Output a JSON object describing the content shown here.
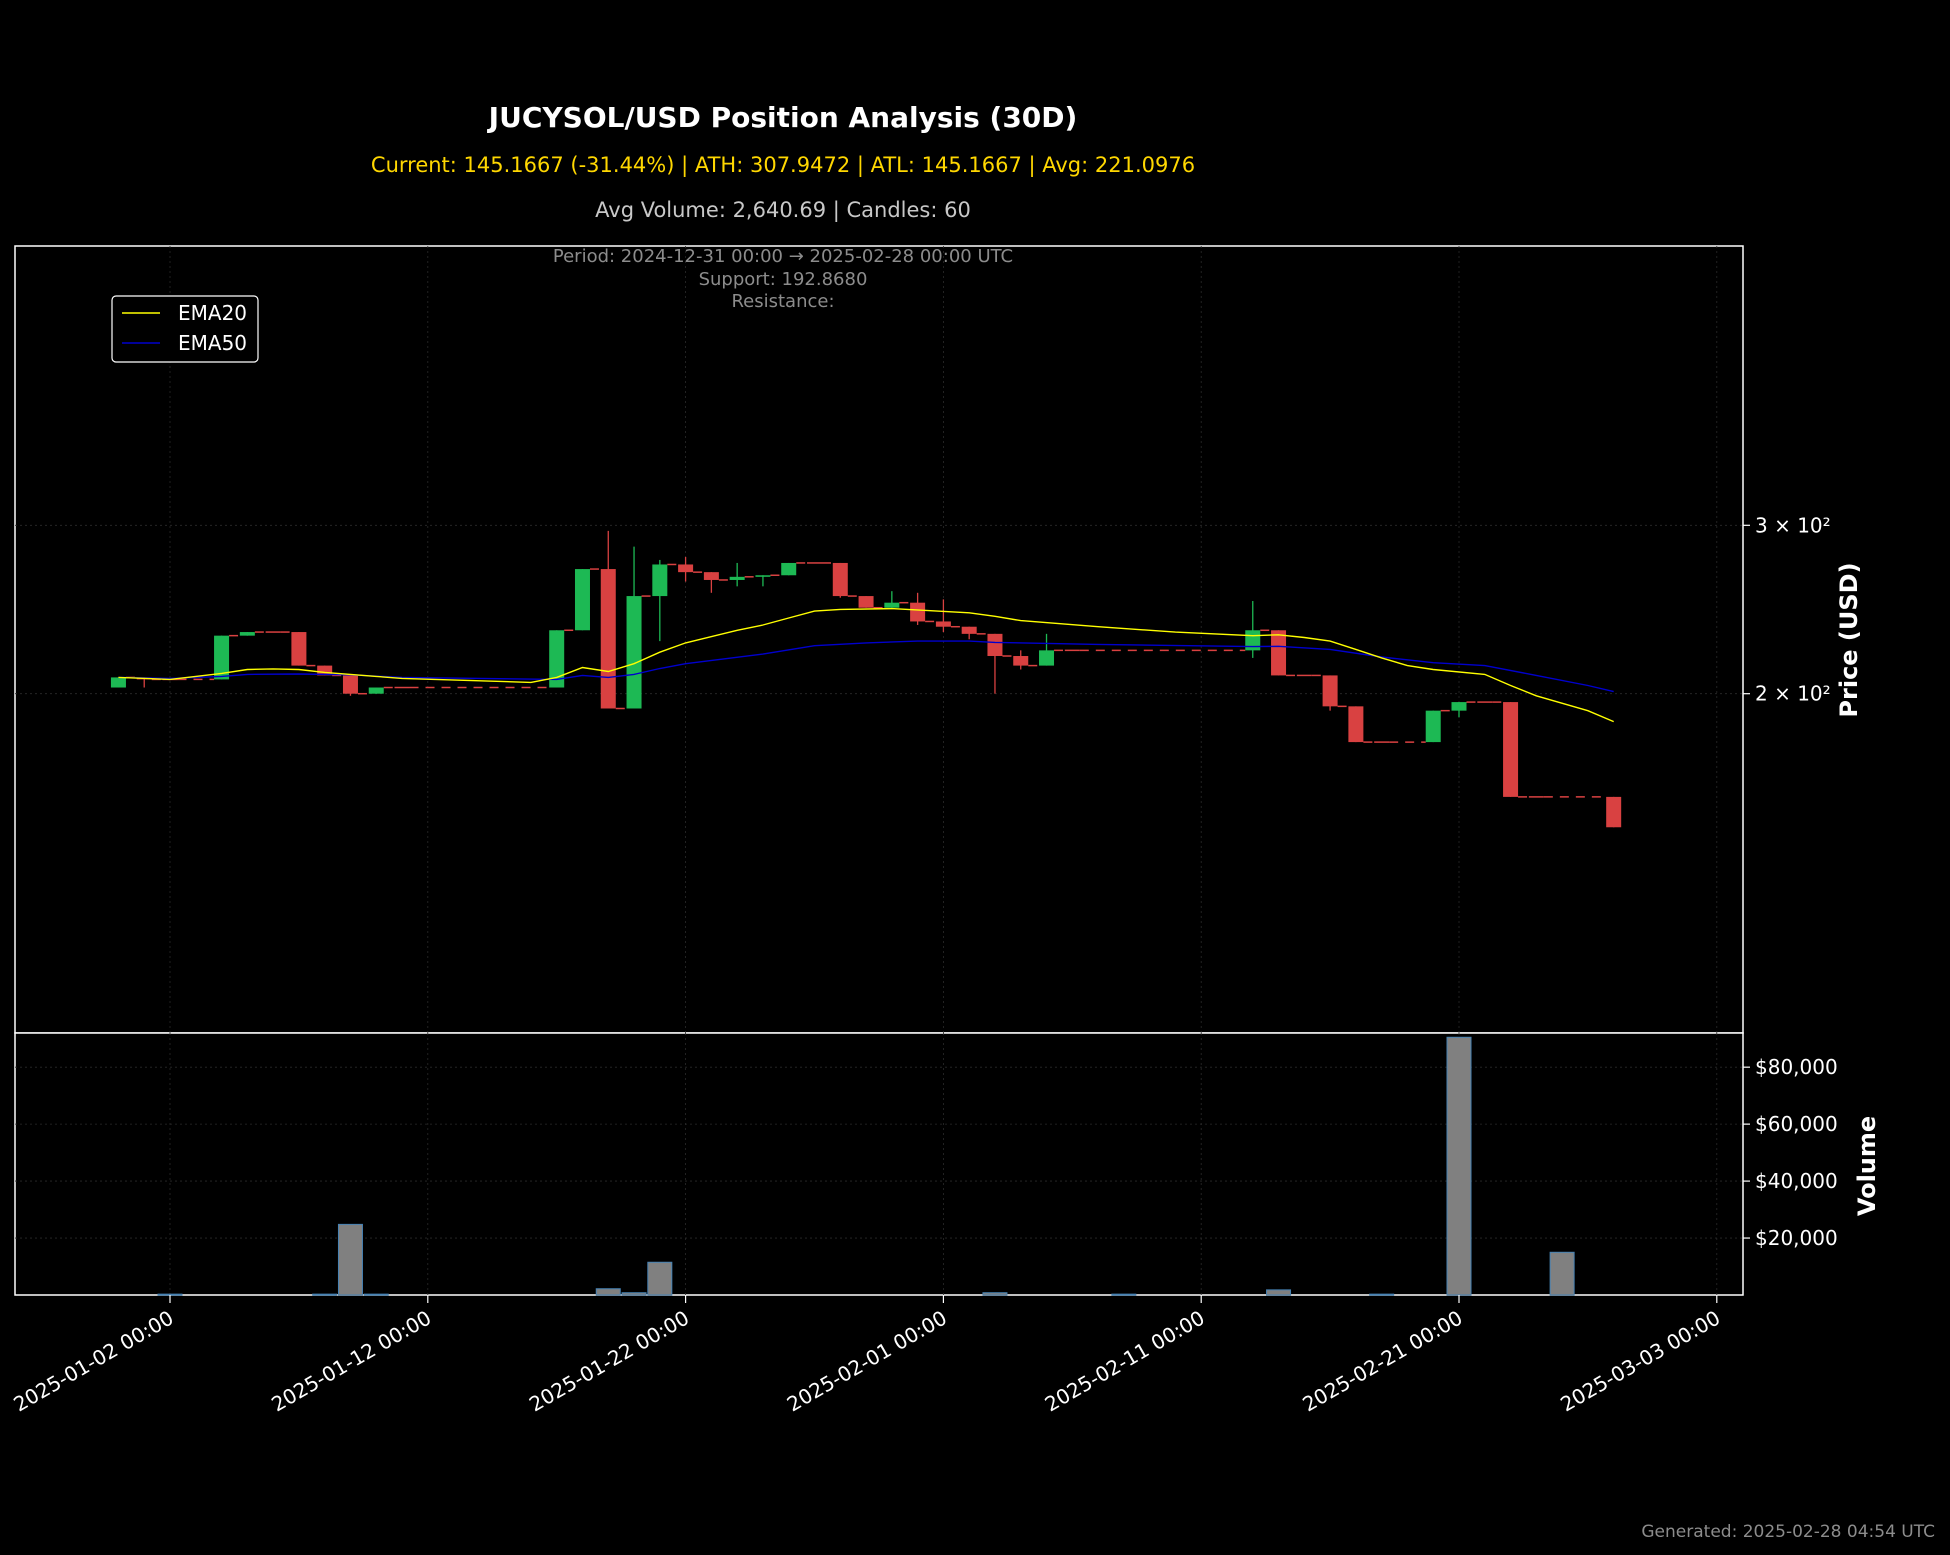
{
  "header": {
    "title": "JUCYSOL/USD Position Analysis (30D)",
    "stats": "Current: 145.1667 (-31.44%) | ATH: 307.9472 | ATL: 145.1667 | Avg: 221.0976",
    "volume_info": "Avg Volume: 2,640.69 | Candles: 60",
    "period": "Period: 2024-12-31 00:00 → 2025-02-28 00:00 UTC",
    "support": "Support: 192.8680",
    "resistance": "Resistance:"
  },
  "footer": {
    "generated": "Generated: 2025-02-28 04:54 UTC"
  },
  "colors": {
    "up": "#1db954",
    "down": "#d94141",
    "ema20": "#ffff00",
    "ema50": "#0000cd",
    "volume": "#808080",
    "volume_edge": "#4682b4",
    "background": "#000000",
    "grid": "#2a2a2a"
  },
  "chart_data": [
    {
      "type": "candlestick",
      "ylabel": "Price (USD)",
      "yscale": "log",
      "ylim": [
        145,
        318
      ],
      "y_tick_labels": [
        "2 × 10²",
        "3 × 10²"
      ],
      "y_ticks": [
        200,
        300
      ],
      "grid": true,
      "legend": {
        "position": "top-left",
        "entries": [
          "EMA20",
          "EMA50"
        ]
      },
      "x_tick_labels": [
        "2025-01-02 00:00",
        "2025-01-12 00:00",
        "2025-01-22 00:00",
        "2025-02-01 00:00",
        "2025-02-11 00:00",
        "2025-02-21 00:00",
        "2025-03-03 00:00"
      ],
      "candles": [
        {
          "d": "2024-12-31",
          "o": 203,
          "h": 208,
          "l": 203,
          "c": 208
        },
        {
          "d": "2025-01-01",
          "o": 208,
          "h": 208,
          "l": 203,
          "c": 207
        },
        {
          "d": "2025-01-02",
          "o": 207,
          "h": 207,
          "l": 207,
          "c": 207
        },
        {
          "d": "2025-01-04",
          "o": 207,
          "h": 230,
          "l": 207,
          "c": 230
        },
        {
          "d": "2025-01-05",
          "o": 230,
          "h": 232,
          "l": 230,
          "c": 232
        },
        {
          "d": "2025-01-06",
          "o": 232,
          "h": 232,
          "l": 232,
          "c": 232
        },
        {
          "d": "2025-01-07",
          "o": 232,
          "h": 232,
          "l": 214,
          "c": 214
        },
        {
          "d": "2025-01-08",
          "o": 214,
          "h": 214,
          "l": 209,
          "c": 209
        },
        {
          "d": "2025-01-09",
          "o": 209,
          "h": 209,
          "l": 199,
          "c": 200
        },
        {
          "d": "2025-01-10",
          "o": 200,
          "h": 203,
          "l": 200,
          "c": 203
        },
        {
          "d": "2025-01-11",
          "o": 203,
          "h": 203,
          "l": 203,
          "c": 203
        },
        {
          "d": "2025-01-17",
          "o": 203,
          "h": 233,
          "l": 203,
          "c": 233
        },
        {
          "d": "2025-01-18",
          "o": 233,
          "h": 270,
          "l": 233,
          "c": 270
        },
        {
          "d": "2025-01-19",
          "o": 270,
          "h": 296,
          "l": 193,
          "c": 193
        },
        {
          "d": "2025-01-20",
          "o": 193,
          "h": 285,
          "l": 193,
          "c": 253
        },
        {
          "d": "2025-01-21",
          "o": 253,
          "h": 276,
          "l": 227,
          "c": 273
        },
        {
          "d": "2025-01-22",
          "o": 273,
          "h": 278,
          "l": 262,
          "c": 268
        },
        {
          "d": "2025-01-23",
          "o": 268,
          "h": 268,
          "l": 255,
          "c": 263
        },
        {
          "d": "2025-01-24",
          "o": 263,
          "h": 274,
          "l": 259,
          "c": 265
        },
        {
          "d": "2025-01-25",
          "o": 265,
          "h": 266,
          "l": 259,
          "c": 266
        },
        {
          "d": "2025-01-26",
          "o": 266,
          "h": 274,
          "l": 266,
          "c": 274
        },
        {
          "d": "2025-01-27",
          "o": 274,
          "h": 274,
          "l": 274,
          "c": 274
        },
        {
          "d": "2025-01-28",
          "o": 274,
          "h": 274,
          "l": 252,
          "c": 253
        },
        {
          "d": "2025-01-29",
          "o": 253,
          "h": 253,
          "l": 246,
          "c": 246
        },
        {
          "d": "2025-01-30",
          "o": 246,
          "h": 256,
          "l": 246,
          "c": 249
        },
        {
          "d": "2025-01-31",
          "o": 249,
          "h": 255,
          "l": 236,
          "c": 238
        },
        {
          "d": "2025-02-01",
          "o": 238,
          "h": 251,
          "l": 232,
          "c": 235
        },
        {
          "d": "2025-02-02",
          "o": 235,
          "h": 235,
          "l": 228,
          "c": 231
        },
        {
          "d": "2025-02-03",
          "o": 231,
          "h": 231,
          "l": 200,
          "c": 219
        },
        {
          "d": "2025-02-04",
          "o": 219,
          "h": 222,
          "l": 212,
          "c": 214
        },
        {
          "d": "2025-02-05",
          "o": 214,
          "h": 231,
          "l": 214,
          "c": 222
        },
        {
          "d": "2025-02-06",
          "o": 222,
          "h": 222,
          "l": 222,
          "c": 222
        },
        {
          "d": "2025-02-13",
          "o": 222,
          "h": 250,
          "l": 218,
          "c": 233
        },
        {
          "d": "2025-02-14",
          "o": 233,
          "h": 233,
          "l": 209,
          "c": 209
        },
        {
          "d": "2025-02-15",
          "o": 209,
          "h": 209,
          "l": 209,
          "c": 209
        },
        {
          "d": "2025-02-16",
          "o": 209,
          "h": 209,
          "l": 192,
          "c": 194
        },
        {
          "d": "2025-02-17",
          "o": 194,
          "h": 194,
          "l": 178,
          "c": 178
        },
        {
          "d": "2025-02-18",
          "o": 178,
          "h": 178,
          "l": 178,
          "c": 178
        },
        {
          "d": "2025-02-20",
          "o": 178,
          "h": 192,
          "l": 178,
          "c": 192
        },
        {
          "d": "2025-02-21",
          "o": 192,
          "h": 196,
          "l": 189,
          "c": 196
        },
        {
          "d": "2025-02-22",
          "o": 196,
          "h": 196,
          "l": 196,
          "c": 196
        },
        {
          "d": "2025-02-23",
          "o": 196,
          "h": 196,
          "l": 156,
          "c": 156
        },
        {
          "d": "2025-02-24",
          "o": 156,
          "h": 156,
          "l": 156,
          "c": 156
        },
        {
          "d": "2025-02-27",
          "o": 156,
          "h": 156,
          "l": 145,
          "c": 145
        }
      ],
      "ema20": [
        {
          "d": "2024-12-31",
          "v": 208
        },
        {
          "d": "2025-01-02",
          "v": 207
        },
        {
          "d": "2025-01-04",
          "v": 210
        },
        {
          "d": "2025-01-05",
          "v": 212
        },
        {
          "d": "2025-01-06",
          "v": 212.3
        },
        {
          "d": "2025-01-07",
          "v": 212
        },
        {
          "d": "2025-01-08",
          "v": 210.5
        },
        {
          "d": "2025-01-10",
          "v": 208.5
        },
        {
          "d": "2025-01-11",
          "v": 207.5
        },
        {
          "d": "2025-01-16",
          "v": 205.5
        },
        {
          "d": "2025-01-17",
          "v": 208
        },
        {
          "d": "2025-01-18",
          "v": 213
        },
        {
          "d": "2025-01-19",
          "v": 211
        },
        {
          "d": "2025-01-20",
          "v": 215
        },
        {
          "d": "2025-01-21",
          "v": 221
        },
        {
          "d": "2025-01-22",
          "v": 226
        },
        {
          "d": "2025-01-24",
          "v": 233
        },
        {
          "d": "2025-01-25",
          "v": 236
        },
        {
          "d": "2025-01-26",
          "v": 240
        },
        {
          "d": "2025-01-27",
          "v": 244
        },
        {
          "d": "2025-01-28",
          "v": 245
        },
        {
          "d": "2025-01-30",
          "v": 245.5
        },
        {
          "d": "2025-02-02",
          "v": 243
        },
        {
          "d": "2025-02-03",
          "v": 241
        },
        {
          "d": "2025-02-04",
          "v": 238.5
        },
        {
          "d": "2025-02-07",
          "v": 235
        },
        {
          "d": "2025-02-10",
          "v": 232
        },
        {
          "d": "2025-02-13",
          "v": 230
        },
        {
          "d": "2025-02-14",
          "v": 230.5
        },
        {
          "d": "2025-02-15",
          "v": 229
        },
        {
          "d": "2025-02-16",
          "v": 227
        },
        {
          "d": "2025-02-17",
          "v": 222.5
        },
        {
          "d": "2025-02-18",
          "v": 218
        },
        {
          "d": "2025-02-19",
          "v": 214
        },
        {
          "d": "2025-02-20",
          "v": 212
        },
        {
          "d": "2025-02-22",
          "v": 209.5
        },
        {
          "d": "2025-02-23",
          "v": 204
        },
        {
          "d": "2025-02-24",
          "v": 199
        },
        {
          "d": "2025-02-26",
          "v": 192
        },
        {
          "d": "2025-02-27",
          "v": 187
        }
      ],
      "ema50": [
        {
          "d": "2024-12-31",
          "v": 208
        },
        {
          "d": "2025-01-02",
          "v": 207.5
        },
        {
          "d": "2025-01-04",
          "v": 208.5
        },
        {
          "d": "2025-01-05",
          "v": 209.5
        },
        {
          "d": "2025-01-07",
          "v": 209.7
        },
        {
          "d": "2025-01-09",
          "v": 209.3
        },
        {
          "d": "2025-01-11",
          "v": 208
        },
        {
          "d": "2025-01-17",
          "v": 207
        },
        {
          "d": "2025-01-18",
          "v": 209
        },
        {
          "d": "2025-01-19",
          "v": 208
        },
        {
          "d": "2025-01-20",
          "v": 209.5
        },
        {
          "d": "2025-01-21",
          "v": 212.5
        },
        {
          "d": "2025-01-22",
          "v": 215
        },
        {
          "d": "2025-01-25",
          "v": 220
        },
        {
          "d": "2025-01-27",
          "v": 224.5
        },
        {
          "d": "2025-01-29",
          "v": 226
        },
        {
          "d": "2025-01-31",
          "v": 227
        },
        {
          "d": "2025-02-02",
          "v": 227
        },
        {
          "d": "2025-02-03",
          "v": 226.3
        },
        {
          "d": "2025-02-07",
          "v": 225.2
        },
        {
          "d": "2025-02-13",
          "v": 224
        },
        {
          "d": "2025-02-14",
          "v": 224.2
        },
        {
          "d": "2025-02-16",
          "v": 222.5
        },
        {
          "d": "2025-02-18",
          "v": 218.5
        },
        {
          "d": "2025-02-20",
          "v": 215.5
        },
        {
          "d": "2025-02-22",
          "v": 214
        },
        {
          "d": "2025-02-24",
          "v": 209
        },
        {
          "d": "2025-02-26",
          "v": 204
        },
        {
          "d": "2025-02-27",
          "v": 201
        }
      ]
    },
    {
      "type": "bar",
      "ylabel": "Volume",
      "ylim": [
        0,
        92000
      ],
      "y_tick_labels": [
        "$20,000",
        "$40,000",
        "$60,000",
        "$80,000"
      ],
      "y_ticks": [
        20000,
        40000,
        60000,
        80000
      ],
      "grid": true,
      "bars": [
        {
          "d": "2025-01-02",
          "v": 300
        },
        {
          "d": "2025-01-08",
          "v": 300
        },
        {
          "d": "2025-01-09",
          "v": 24800
        },
        {
          "d": "2025-01-10",
          "v": 300
        },
        {
          "d": "2025-01-19",
          "v": 2200
        },
        {
          "d": "2025-01-20",
          "v": 800
        },
        {
          "d": "2025-01-21",
          "v": 11500
        },
        {
          "d": "2025-02-03",
          "v": 800
        },
        {
          "d": "2025-02-08",
          "v": 300
        },
        {
          "d": "2025-02-14",
          "v": 1800
        },
        {
          "d": "2025-02-18",
          "v": 300
        },
        {
          "d": "2025-02-21",
          "v": 90500
        },
        {
          "d": "2025-02-25",
          "v": 15000
        }
      ]
    }
  ]
}
